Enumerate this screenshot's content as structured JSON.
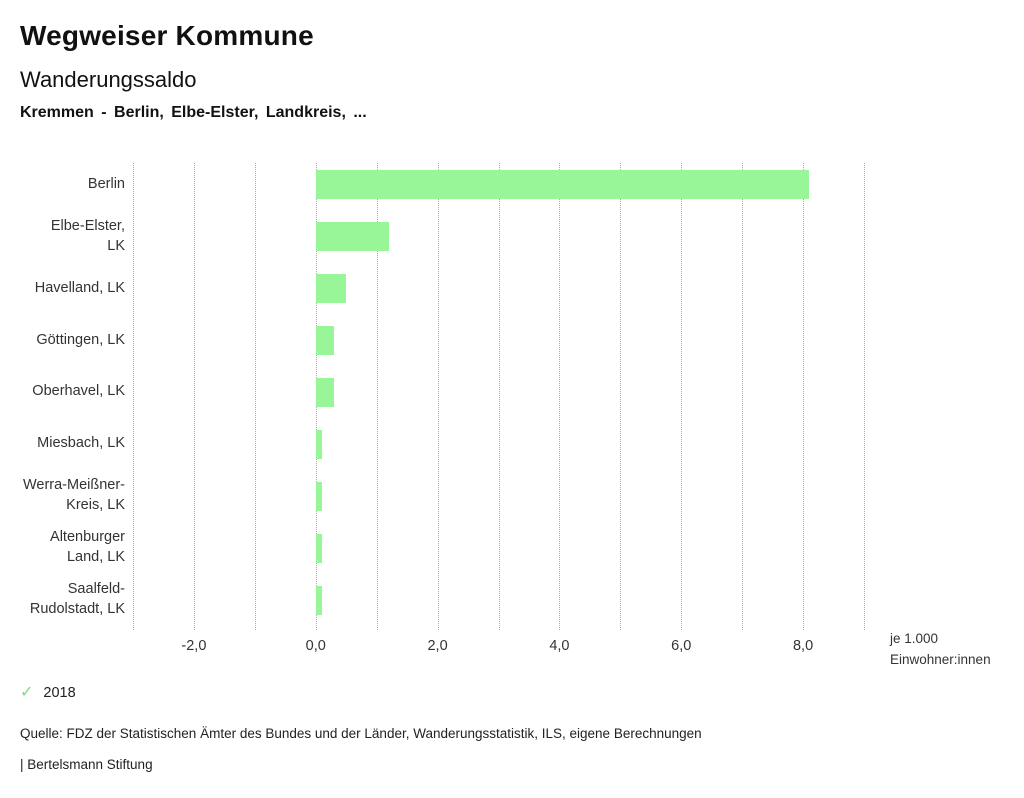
{
  "header": {
    "title": "Wegweiser Kommune",
    "subtitle": "Wanderungssaldo",
    "selection": "Kremmen - Berlin, Elbe-Elster, Landkreis, ..."
  },
  "chart_data": {
    "type": "bar",
    "orientation": "horizontal",
    "title": "Wanderungssaldo",
    "xlabel": "je 1.000 Einwohner:innen",
    "ylabel": "",
    "xlim": [
      -3,
      9
    ],
    "grid": true,
    "grid_step": 1,
    "categories": [
      "Berlin",
      "Elbe-Elster, LK",
      "Havelland, LK",
      "Göttingen, LK",
      "Oberhavel, LK",
      "Miesbach, LK",
      "Werra-Meißner-Kreis, LK",
      "Altenburger Land, LK",
      "Saalfeld-Rudolstadt, LK"
    ],
    "category_lines": [
      [
        "Berlin"
      ],
      [
        "Elbe-Elster,",
        "LK"
      ],
      [
        "Havelland, LK"
      ],
      [
        "Göttingen, LK"
      ],
      [
        "Oberhavel, LK"
      ],
      [
        "Miesbach, LK"
      ],
      [
        "Werra-Meißner-",
        "Kreis, LK"
      ],
      [
        "Altenburger",
        "Land, LK"
      ],
      [
        "Saalfeld-",
        "Rudolstadt, LK"
      ]
    ],
    "series": [
      {
        "name": "2018",
        "values": [
          8.1,
          1.2,
          0.5,
          0.3,
          0.3,
          0.1,
          0.1,
          0.1,
          0.1
        ]
      }
    ],
    "ticks": [
      {
        "value": -2,
        "label": "-2,0"
      },
      {
        "value": 0,
        "label": "0,0"
      },
      {
        "value": 2,
        "label": "2,0"
      },
      {
        "value": 4,
        "label": "4,0"
      },
      {
        "value": 6,
        "label": "6,0"
      },
      {
        "value": 8,
        "label": "8,0"
      }
    ],
    "unit_label_lines": [
      "je 1.000",
      "Einwohner:innen"
    ],
    "legend_position": "bottom-left"
  },
  "legend": {
    "check_icon": "✓",
    "items": [
      {
        "label": "2018",
        "checked": true
      }
    ]
  },
  "footer": {
    "source": "Quelle: FDZ der Statistischen Ämter des Bundes und der Länder, Wanderungsstatistik, ILS, eigene Berechnungen",
    "brand": "| Bertelsmann Stiftung"
  },
  "colors": {
    "bar": "#98f598",
    "check": "#7edc7e",
    "grid": "#ababab",
    "background": "#ffffff"
  }
}
